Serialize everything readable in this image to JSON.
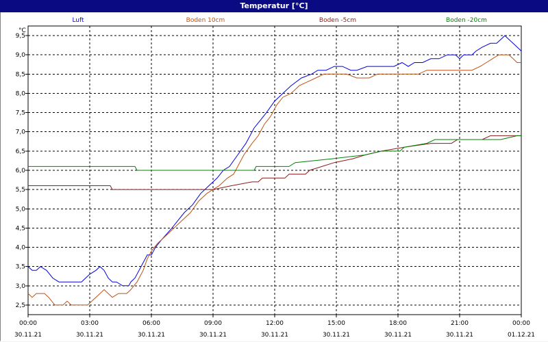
{
  "window": {
    "title": "Temperatur [°C]"
  },
  "chart_data": {
    "type": "line",
    "title": "Temperatur [°C]",
    "ylabel": "°C",
    "xlabel": "",
    "ylim": [
      2.25,
      9.75
    ],
    "y_ticks": [
      "2,5",
      "3,0",
      "3,5",
      "4,0",
      "4,5",
      "5,0",
      "5,5",
      "6,0",
      "6,5",
      "7,0",
      "7,5",
      "8,0",
      "8,5",
      "9,0",
      "9,5"
    ],
    "xlim": [
      0,
      24
    ],
    "x_ticks": [
      {
        "time": "00:00",
        "date": "30.11.21"
      },
      {
        "time": "03:00",
        "date": "30.11.21"
      },
      {
        "time": "06:00",
        "date": "30.11.21"
      },
      {
        "time": "09:00",
        "date": "30.11.21"
      },
      {
        "time": "12:00",
        "date": "30.11.21"
      },
      {
        "time": "15:00",
        "date": "30.11.21"
      },
      {
        "time": "18:00",
        "date": "30.11.21"
      },
      {
        "time": "21:00",
        "date": "30.11.21"
      },
      {
        "time": "00:00",
        "date": "01.12.21"
      }
    ],
    "grid": true,
    "legend_position": "top",
    "series": [
      {
        "name": "Luft",
        "color": "#0000e0",
        "points": [
          [
            0,
            3.5
          ],
          [
            0.2,
            3.4
          ],
          [
            0.4,
            3.4
          ],
          [
            0.6,
            3.5
          ],
          [
            0.9,
            3.4
          ],
          [
            1.2,
            3.2
          ],
          [
            1.5,
            3.1
          ],
          [
            2.0,
            3.1
          ],
          [
            2.6,
            3.1
          ],
          [
            2.8,
            3.2
          ],
          [
            3.0,
            3.3
          ],
          [
            3.3,
            3.4
          ],
          [
            3.5,
            3.5
          ],
          [
            3.7,
            3.4
          ],
          [
            3.9,
            3.2
          ],
          [
            4.1,
            3.1
          ],
          [
            4.3,
            3.1
          ],
          [
            4.6,
            3.0
          ],
          [
            4.9,
            3.0
          ],
          [
            5.0,
            3.1
          ],
          [
            5.2,
            3.2
          ],
          [
            5.4,
            3.4
          ],
          [
            5.6,
            3.6
          ],
          [
            5.8,
            3.8
          ],
          [
            6.0,
            3.8
          ],
          [
            6.2,
            4.0
          ],
          [
            6.5,
            4.2
          ],
          [
            7.0,
            4.5
          ],
          [
            7.3,
            4.7
          ],
          [
            7.6,
            4.9
          ],
          [
            8.0,
            5.1
          ],
          [
            8.4,
            5.4
          ],
          [
            8.8,
            5.6
          ],
          [
            9.0,
            5.7
          ],
          [
            9.2,
            5.8
          ],
          [
            9.5,
            6.0
          ],
          [
            9.8,
            6.1
          ],
          [
            10.2,
            6.4
          ],
          [
            10.6,
            6.7
          ],
          [
            11.0,
            7.1
          ],
          [
            11.3,
            7.3
          ],
          [
            11.6,
            7.5
          ],
          [
            12.0,
            7.8
          ],
          [
            12.4,
            8.0
          ],
          [
            12.8,
            8.2
          ],
          [
            13.3,
            8.4
          ],
          [
            13.8,
            8.5
          ],
          [
            14.1,
            8.6
          ],
          [
            14.5,
            8.6
          ],
          [
            14.9,
            8.7
          ],
          [
            15.3,
            8.7
          ],
          [
            15.7,
            8.6
          ],
          [
            16.0,
            8.6
          ],
          [
            16.5,
            8.7
          ],
          [
            17.3,
            8.7
          ],
          [
            17.8,
            8.7
          ],
          [
            18.2,
            8.8
          ],
          [
            18.5,
            8.7
          ],
          [
            18.8,
            8.8
          ],
          [
            19.2,
            8.8
          ],
          [
            19.6,
            8.9
          ],
          [
            20.0,
            8.9
          ],
          [
            20.4,
            9.0
          ],
          [
            20.8,
            9.0
          ],
          [
            21.0,
            8.9
          ],
          [
            21.2,
            9.0
          ],
          [
            21.6,
            9.0
          ],
          [
            21.8,
            9.1
          ],
          [
            22.1,
            9.2
          ],
          [
            22.5,
            9.3
          ],
          [
            22.8,
            9.3
          ],
          [
            23.0,
            9.4
          ],
          [
            23.2,
            9.5
          ],
          [
            23.4,
            9.4
          ],
          [
            23.6,
            9.3
          ],
          [
            23.8,
            9.2
          ],
          [
            24.0,
            9.1
          ]
        ]
      },
      {
        "name": "Boden 10cm",
        "color": "#c05010",
        "points": [
          [
            0,
            2.8
          ],
          [
            0.2,
            2.7
          ],
          [
            0.4,
            2.8
          ],
          [
            0.8,
            2.8
          ],
          [
            1.0,
            2.7
          ],
          [
            1.3,
            2.5
          ],
          [
            1.7,
            2.5
          ],
          [
            1.9,
            2.6
          ],
          [
            2.1,
            2.5
          ],
          [
            2.6,
            2.5
          ],
          [
            2.9,
            2.5
          ],
          [
            3.1,
            2.6
          ],
          [
            3.3,
            2.7
          ],
          [
            3.5,
            2.8
          ],
          [
            3.7,
            2.9
          ],
          [
            3.9,
            2.8
          ],
          [
            4.1,
            2.7
          ],
          [
            4.4,
            2.8
          ],
          [
            4.8,
            2.8
          ],
          [
            5.0,
            2.9
          ],
          [
            5.3,
            3.1
          ],
          [
            5.6,
            3.4
          ],
          [
            5.8,
            3.7
          ],
          [
            6.0,
            3.9
          ],
          [
            6.3,
            4.1
          ],
          [
            6.7,
            4.3
          ],
          [
            7.1,
            4.5
          ],
          [
            7.5,
            4.7
          ],
          [
            7.9,
            4.9
          ],
          [
            8.3,
            5.2
          ],
          [
            8.7,
            5.4
          ],
          [
            9.0,
            5.5
          ],
          [
            9.3,
            5.6
          ],
          [
            9.7,
            5.8
          ],
          [
            10.0,
            5.9
          ],
          [
            10.2,
            6.1
          ],
          [
            10.5,
            6.4
          ],
          [
            10.9,
            6.7
          ],
          [
            11.2,
            6.9
          ],
          [
            11.5,
            7.2
          ],
          [
            11.8,
            7.4
          ],
          [
            12.1,
            7.7
          ],
          [
            12.4,
            7.9
          ],
          [
            12.8,
            8.0
          ],
          [
            13.2,
            8.2
          ],
          [
            13.6,
            8.3
          ],
          [
            14.0,
            8.4
          ],
          [
            14.4,
            8.5
          ],
          [
            14.8,
            8.5
          ],
          [
            15.5,
            8.5
          ],
          [
            16.0,
            8.4
          ],
          [
            16.6,
            8.4
          ],
          [
            17.0,
            8.5
          ],
          [
            18.0,
            8.5
          ],
          [
            19.0,
            8.5
          ],
          [
            19.4,
            8.6
          ],
          [
            20.0,
            8.6
          ],
          [
            21.0,
            8.6
          ],
          [
            21.6,
            8.6
          ],
          [
            22.0,
            8.7
          ],
          [
            22.3,
            8.8
          ],
          [
            22.6,
            8.9
          ],
          [
            22.9,
            9.0
          ],
          [
            23.4,
            9.0
          ],
          [
            23.6,
            8.9
          ],
          [
            23.8,
            8.8
          ],
          [
            24.0,
            8.8
          ]
        ]
      },
      {
        "name": "Boden -5cm",
        "color": "#8b1a1a",
        "points": [
          [
            0,
            5.6
          ],
          [
            2.9,
            5.6
          ],
          [
            4.0,
            5.6
          ],
          [
            4.1,
            5.5
          ],
          [
            7.0,
            5.5
          ],
          [
            8.0,
            5.5
          ],
          [
            9.0,
            5.5
          ],
          [
            9.9,
            5.6
          ],
          [
            10.9,
            5.7
          ],
          [
            11.2,
            5.7
          ],
          [
            11.4,
            5.8
          ],
          [
            12.5,
            5.8
          ],
          [
            12.7,
            5.9
          ],
          [
            13.5,
            5.9
          ],
          [
            13.7,
            6.0
          ],
          [
            14.3,
            6.1
          ],
          [
            14.9,
            6.2
          ],
          [
            15.8,
            6.3
          ],
          [
            16.4,
            6.4
          ],
          [
            17.2,
            6.5
          ],
          [
            18.3,
            6.6
          ],
          [
            19.6,
            6.7
          ],
          [
            20.6,
            6.7
          ],
          [
            20.9,
            6.8
          ],
          [
            21.6,
            6.8
          ],
          [
            21.8,
            6.8
          ],
          [
            22.1,
            6.8
          ],
          [
            22.5,
            6.9
          ],
          [
            23.8,
            6.9
          ],
          [
            24.0,
            6.9
          ]
        ]
      },
      {
        "name": "Boden -20cm",
        "color": "#008000",
        "points": [
          [
            0,
            6.1
          ],
          [
            2.0,
            6.1
          ],
          [
            5.2,
            6.1
          ],
          [
            5.3,
            6.0
          ],
          [
            7.0,
            6.0
          ],
          [
            11.0,
            6.0
          ],
          [
            11.1,
            6.1
          ],
          [
            12.5,
            6.1
          ],
          [
            12.7,
            6.1
          ],
          [
            13.0,
            6.2
          ],
          [
            14.8,
            6.3
          ],
          [
            16.4,
            6.4
          ],
          [
            17.2,
            6.5
          ],
          [
            18.1,
            6.5
          ],
          [
            18.3,
            6.6
          ],
          [
            19.4,
            6.7
          ],
          [
            19.8,
            6.8
          ],
          [
            20.6,
            6.8
          ],
          [
            21.6,
            6.8
          ],
          [
            22.0,
            6.8
          ],
          [
            23.0,
            6.8
          ],
          [
            23.8,
            6.9
          ],
          [
            24.0,
            6.9
          ]
        ]
      }
    ]
  }
}
